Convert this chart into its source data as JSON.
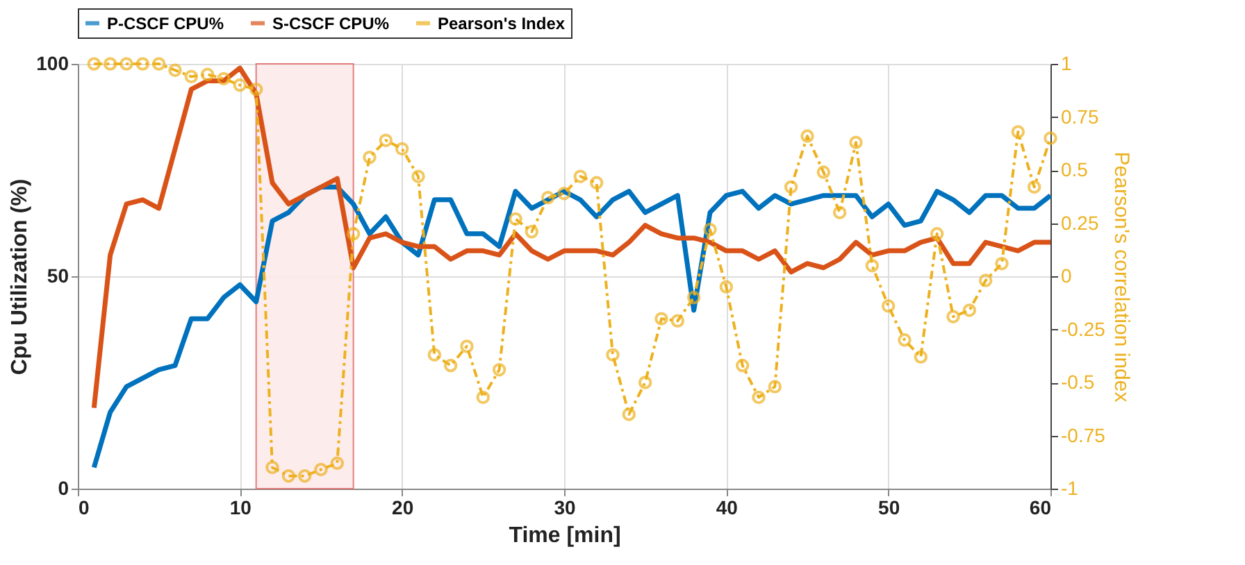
{
  "chart_data": {
    "type": "line",
    "xlabel": "Time [min]",
    "ylabel": "Cpu Utilization (%)",
    "y2label": "Pearson's correlation index",
    "x": [
      1,
      2,
      3,
      4,
      5,
      6,
      7,
      8,
      9,
      10,
      11,
      12,
      13,
      14,
      15,
      16,
      17,
      18,
      19,
      20,
      21,
      22,
      23,
      24,
      25,
      26,
      27,
      28,
      29,
      30,
      31,
      32,
      33,
      34,
      35,
      36,
      37,
      38,
      39,
      40,
      41,
      42,
      43,
      44,
      45,
      46,
      47,
      48,
      49,
      50,
      51,
      52,
      53,
      54,
      55,
      56,
      57,
      58,
      59,
      60
    ],
    "series": [
      {
        "name": "P-CSCF CPU%",
        "color": "#0072bd",
        "values": [
          5,
          18,
          24,
          26,
          28,
          29,
          40,
          40,
          45,
          48,
          44,
          63,
          65,
          69,
          71,
          71,
          67,
          60,
          64,
          58,
          55,
          68,
          68,
          60,
          60,
          57,
          70,
          66,
          68,
          70,
          68,
          64,
          68,
          70,
          65,
          67,
          69,
          42,
          65,
          69,
          70,
          66,
          69,
          67,
          68,
          69,
          69,
          69,
          64,
          67,
          62,
          63,
          70,
          68,
          65,
          69,
          69,
          66,
          66,
          69
        ]
      },
      {
        "name": "S-CSCF CPU%",
        "color": "#d95319",
        "values": [
          19,
          55,
          67,
          68,
          66,
          80,
          94,
          96,
          96,
          99,
          93,
          72,
          67,
          69,
          71,
          73,
          52,
          59,
          60,
          58,
          57,
          57,
          54,
          56,
          56,
          55,
          60,
          56,
          54,
          56,
          56,
          56,
          55,
          58,
          62,
          60,
          59,
          59,
          58,
          56,
          56,
          54,
          56,
          51,
          53,
          52,
          54,
          58,
          55,
          56,
          56,
          58,
          59,
          53,
          53,
          58,
          57,
          56,
          58,
          58
        ]
      },
      {
        "name": "Pearson's Index",
        "color": "#edb120",
        "axis": "y2",
        "marker": "circle",
        "line_style": "dashed",
        "values": [
          1,
          1,
          1,
          1,
          1,
          0.97,
          0.94,
          0.95,
          0.93,
          0.9,
          0.88,
          -0.9,
          -0.94,
          -0.94,
          -0.91,
          -0.88,
          0.2,
          0.56,
          0.64,
          0.6,
          0.47,
          -0.37,
          -0.42,
          -0.33,
          -0.57,
          -0.44,
          0.27,
          0.21,
          0.37,
          0.39,
          0.47,
          0.44,
          -0.37,
          -0.65,
          -0.5,
          -0.2,
          -0.21,
          -0.1,
          0.22,
          -0.05,
          -0.42,
          -0.57,
          -0.52,
          0.42,
          0.66,
          0.49,
          0.3,
          0.63,
          0.05,
          -0.14,
          -0.3,
          -0.38,
          0.2,
          -0.19,
          -0.16,
          -0.02,
          0.06,
          0.68,
          0.42,
          0.65
        ]
      }
    ],
    "xlim": [
      0,
      60
    ],
    "xticks": [
      0,
      10,
      20,
      30,
      40,
      50,
      60
    ],
    "ylim": [
      0,
      100
    ],
    "yticks": [
      0,
      50,
      100
    ],
    "y2lim": [
      -1,
      1
    ],
    "y2ticks": [
      -1,
      -0.75,
      -0.5,
      -0.25,
      0,
      0.25,
      0.5,
      0.75,
      1
    ],
    "bands": [
      {
        "axis": "x",
        "from": 11,
        "to": 17,
        "color": "#fdeaea"
      }
    ],
    "grid": true,
    "legend": "top"
  }
}
